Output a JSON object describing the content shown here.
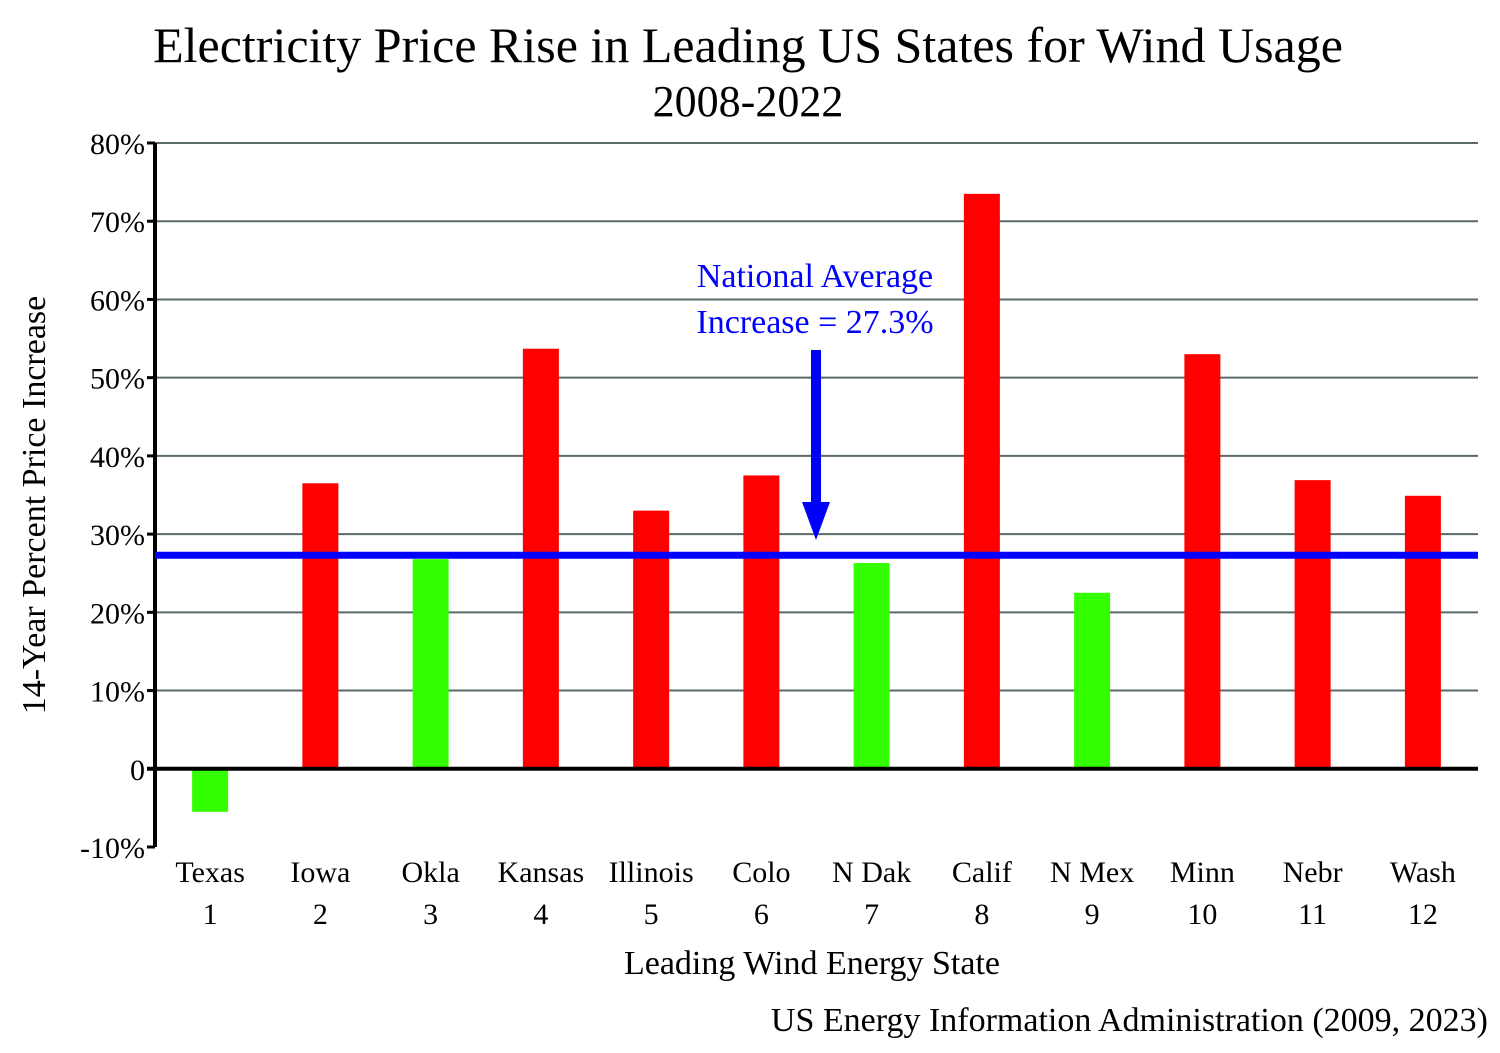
{
  "chart_data": {
    "type": "bar",
    "title": "Electricity Price Rise in Leading US States for Wind Usage",
    "subtitle": "2008-2022",
    "xlabel": "Leading Wind Energy State",
    "ylabel": "14-Year Percent Price Increase",
    "source": "US Energy Information Administration (2009, 2023)",
    "categories": [
      "Texas",
      "Iowa",
      "Okla",
      "Kansas",
      "Illinois",
      "Colo",
      "N Dak",
      "Calif",
      "N Mex",
      "Minn",
      "Nebr",
      "Wash"
    ],
    "ranks": [
      "1",
      "2",
      "3",
      "4",
      "5",
      "6",
      "7",
      "8",
      "9",
      "10",
      "11",
      "12"
    ],
    "values": [
      -5.5,
      36.5,
      26.8,
      53.7,
      33.0,
      37.5,
      26.3,
      73.5,
      22.5,
      53.0,
      36.9,
      34.9
    ],
    "ylim": [
      -10,
      80
    ],
    "yticks": [
      -10,
      0,
      10,
      20,
      30,
      40,
      50,
      60,
      70,
      80
    ],
    "ytick_labels": [
      "-10%",
      "0",
      "10%",
      "20%",
      "30%",
      "40%",
      "50%",
      "60%",
      "70%",
      "80%"
    ],
    "grid": true,
    "reference_line": {
      "value": 27.3,
      "label_line1": "National Average",
      "label_line2": "Increase = 27.3%"
    },
    "colors": {
      "above_average": "#ff0000",
      "below_average": "#33ff00",
      "average_line": "#0000ff",
      "annotation_text": "#0000ff",
      "grid": "#5a6a6a",
      "axis": "#000000"
    }
  }
}
